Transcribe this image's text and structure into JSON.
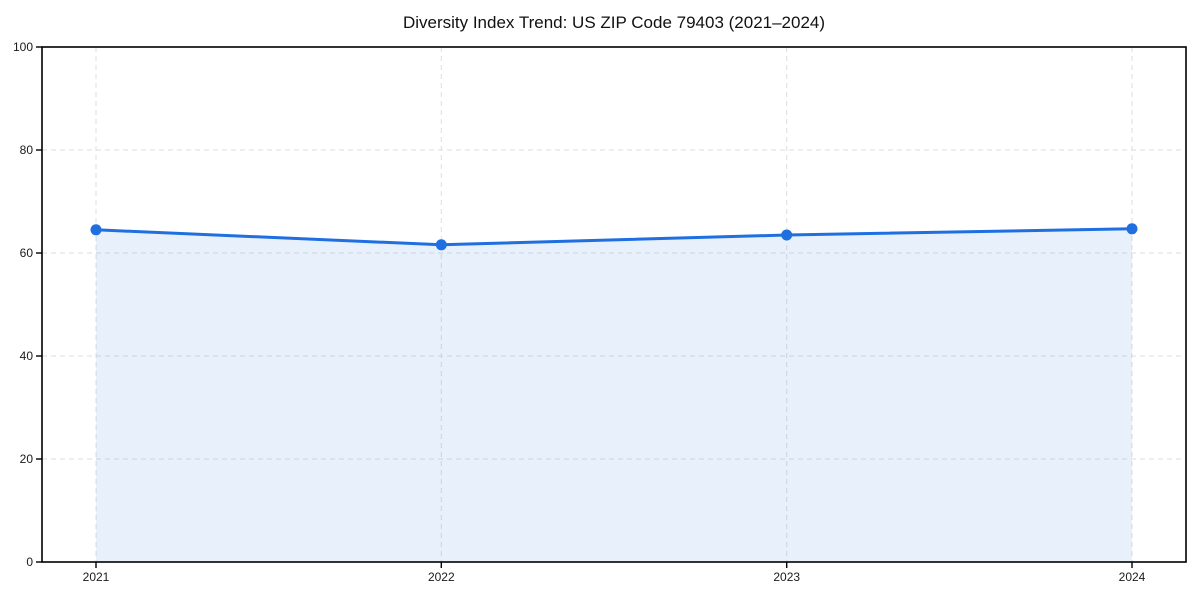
{
  "page": {
    "background": "#ffffff"
  },
  "chart_data": {
    "type": "line",
    "area": true,
    "title": "Diversity Index Trend: US ZIP Code 79403 (2021–2024)",
    "x_categories": [
      "2021",
      "2022",
      "2023",
      "2024"
    ],
    "series": [
      {
        "name": "Diversity Index",
        "values": [
          64.5,
          61.6,
          63.5,
          64.7
        ]
      }
    ],
    "xlabel": "",
    "ylabel": "",
    "ylim": [
      0,
      100
    ],
    "yticks": [
      0,
      20,
      40,
      60,
      80,
      100
    ],
    "grid": {
      "show": true,
      "style": "dashed",
      "color": "#dedede"
    },
    "legend": {
      "show": false
    },
    "marker": "circle",
    "colors": {
      "line": "#1f6fe0",
      "marker": "#1f6fe0",
      "fill": "rgba(31,111,224,0.10)",
      "axis": "#000000",
      "tick_label": "#1a1a1a",
      "title": "#111111"
    }
  }
}
